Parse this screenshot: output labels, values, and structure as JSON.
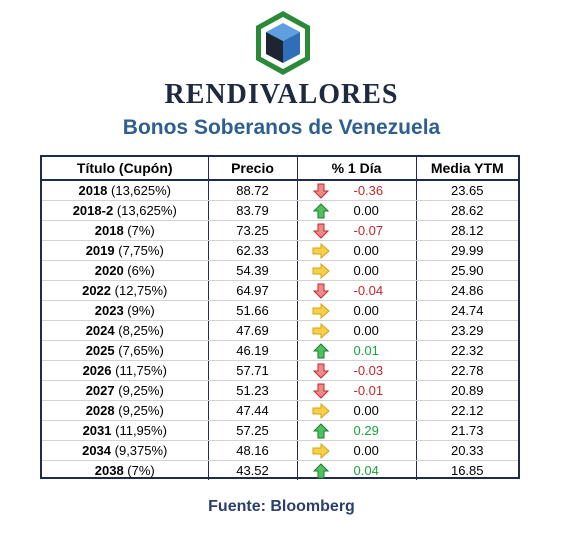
{
  "brand": {
    "name": "RENDIVALORES",
    "logo_icon": "cube-hexagon-logo",
    "logo_colors": {
      "hexagon": "#2a8a3a",
      "cube_light": "#3f7fc9",
      "cube_dark": "#1f2433"
    }
  },
  "title": "Bonos Soberanos de Venezuela",
  "table": {
    "headers": [
      "Título (Cupón)",
      "Precio",
      "% 1 Día",
      "Media YTM"
    ],
    "rows": [
      {
        "year": "2018",
        "coupon": "(13,625%)",
        "precio": "88.72",
        "change": "-0.36",
        "direction": "down",
        "ytm": "23.65"
      },
      {
        "year": "2018-2",
        "coupon": "(13,625%)",
        "precio": "83.79",
        "change": "0.00",
        "direction": "up",
        "ytm": "28.62"
      },
      {
        "year": "2018",
        "coupon": "(7%)",
        "precio": "73.25",
        "change": "-0.07",
        "direction": "down",
        "ytm": "28.12"
      },
      {
        "year": "2019",
        "coupon": "(7,75%)",
        "precio": "62.33",
        "change": "0.00",
        "direction": "flat",
        "ytm": "29.99"
      },
      {
        "year": "2020",
        "coupon": "(6%)",
        "precio": "54.39",
        "change": "0.00",
        "direction": "flat",
        "ytm": "25.90"
      },
      {
        "year": "2022",
        "coupon": "(12,75%)",
        "precio": "64.97",
        "change": "-0.04",
        "direction": "down",
        "ytm": "24.86"
      },
      {
        "year": "2023",
        "coupon": "(9%)",
        "precio": "51.66",
        "change": "0.00",
        "direction": "flat",
        "ytm": "24.74"
      },
      {
        "year": "2024",
        "coupon": "(8,25%)",
        "precio": "47.69",
        "change": "0.00",
        "direction": "flat",
        "ytm": "23.29"
      },
      {
        "year": "2025",
        "coupon": "(7,65%)",
        "precio": "46.19",
        "change": "0.01",
        "direction": "up",
        "ytm": "22.32"
      },
      {
        "year": "2026",
        "coupon": "(11,75%)",
        "precio": "57.71",
        "change": "-0.03",
        "direction": "down",
        "ytm": "22.78"
      },
      {
        "year": "2027",
        "coupon": "(9,25%)",
        "precio": "51.23",
        "change": "-0.01",
        "direction": "down",
        "ytm": "20.89"
      },
      {
        "year": "2028",
        "coupon": "(9,25%)",
        "precio": "47.44",
        "change": "0.00",
        "direction": "flat",
        "ytm": "22.12"
      },
      {
        "year": "2031",
        "coupon": "(11,95%)",
        "precio": "57.25",
        "change": "0.29",
        "direction": "up",
        "ytm": "21.73"
      },
      {
        "year": "2034",
        "coupon": "(9,375%)",
        "precio": "48.16",
        "change": "0.00",
        "direction": "flat",
        "ytm": "20.33"
      },
      {
        "year": "2038",
        "coupon": "(7%)",
        "precio": "43.52",
        "change": "0.04",
        "direction": "up",
        "ytm": "16.85"
      }
    ],
    "arrow_icons": {
      "down": "red-down-arrow-icon",
      "up": "green-up-arrow-icon",
      "flat": "yellow-right-arrow-icon"
    },
    "colors": {
      "negative": "#c0282d",
      "positive": "#1aa33a",
      "flat_arrow": "#f5c518",
      "border": "#1f2a4e"
    }
  },
  "source": "Fuente: Bloomberg"
}
